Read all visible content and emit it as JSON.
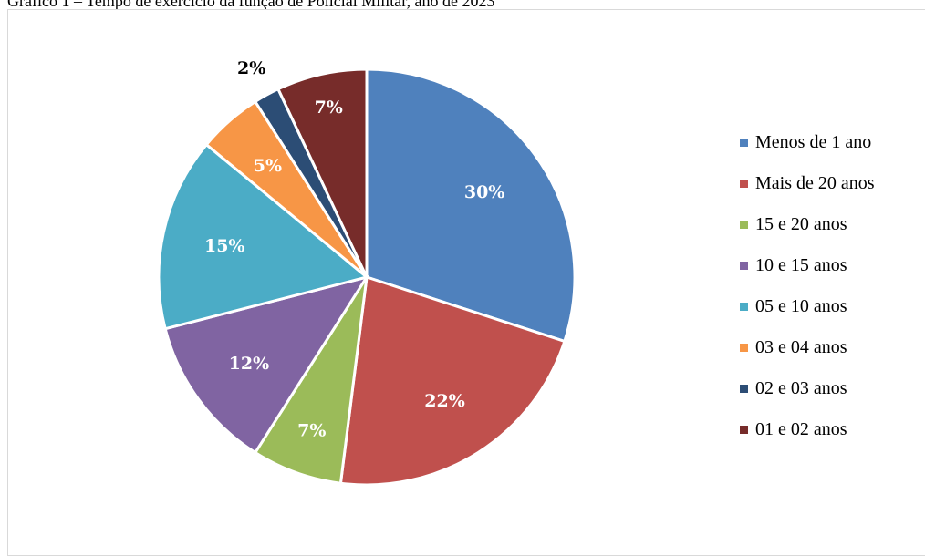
{
  "title": "Gráfico 1 – Tempo de exercício da função de Policial Militar, ano de 2023",
  "chart_data": {
    "type": "pie",
    "title": "Gráfico 1 – Tempo de exercício da função de Policial Militar, ano de 2023",
    "legend_position": "right",
    "slices": [
      {
        "label": "Menos de 1 ano",
        "value": 30,
        "display": "30%",
        "color": "#4F81BD"
      },
      {
        "label": "Mais de 20 anos",
        "value": 22,
        "display": "22%",
        "color": "#C0504D"
      },
      {
        "label": "15 e 20 anos",
        "value": 7,
        "display": "7%",
        "color": "#9BBB59"
      },
      {
        "label": "10 e 15 anos",
        "value": 12,
        "display": "12%",
        "color": "#8064A2"
      },
      {
        "label": "05 e 10 anos",
        "value": 15,
        "display": "15%",
        "color": "#4BACC6"
      },
      {
        "label": "03 e 04 anos",
        "value": 5,
        "display": "5%",
        "color": "#F79646"
      },
      {
        "label": "02 e 03 anos",
        "value": 2,
        "display": "2%",
        "color": "#2C4D75"
      },
      {
        "label": "01 e 02 anos",
        "value": 7,
        "display": "7%",
        "color": "#772C2A"
      }
    ]
  }
}
